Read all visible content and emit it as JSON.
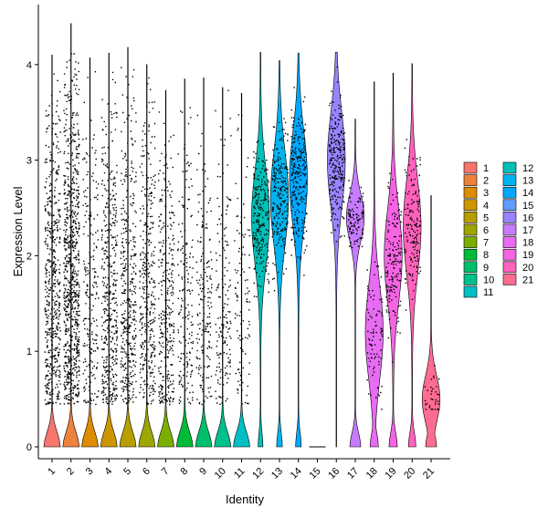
{
  "chart_data": {
    "type": "violin",
    "title": "",
    "xlabel": "Identity",
    "ylabel": "Expression Level",
    "ylim": [
      -0.2,
      4.5
    ],
    "yticks": [
      0,
      1,
      2,
      3,
      4
    ],
    "grid": false,
    "legend_position": "right",
    "legend_columns": 2,
    "categories": [
      "1",
      "2",
      "3",
      "4",
      "5",
      "6",
      "7",
      "8",
      "9",
      "10",
      "11",
      "12",
      "13",
      "14",
      "15",
      "16",
      "17",
      "18",
      "19",
      "20",
      "21"
    ],
    "colors": [
      "#F8766D",
      "#EC823C",
      "#DE8C00",
      "#CD9600",
      "#B79F00",
      "#9CA700",
      "#7CAE00",
      "#00BA38",
      "#00BE6B",
      "#00C08B",
      "#00BFC4",
      "#00C0B9",
      "#00B4EF",
      "#00A9FF",
      "#619CFF",
      "#9A83FF",
      "#C77CFF",
      "#E76BF3",
      "#F564E3",
      "#FF62BC",
      "#FF6C91"
    ],
    "max_values": [
      4.1,
      4.43,
      4.07,
      4.12,
      4.18,
      4.0,
      3.73,
      3.85,
      3.86,
      3.76,
      3.7,
      4.13,
      4.04,
      4.12,
      0.0,
      4.13,
      3.43,
      3.82,
      3.91,
      4.01,
      2.63
    ],
    "violin_peak_y": [
      0.25,
      0.25,
      0.1,
      0.3,
      0.3,
      0.3,
      0.25,
      0.3,
      0.3,
      0.25,
      0.25,
      2.4,
      2.6,
      2.8,
      0.0,
      3.0,
      2.4,
      1.2,
      2.0,
      2.3,
      0.5
    ],
    "violin_zero_fraction": [
      0.9,
      0.9,
      1.0,
      0.85,
      0.85,
      0.85,
      0.9,
      0.85,
      0.85,
      0.85,
      0.9,
      0.25,
      0.3,
      0.3,
      1.0,
      0.0,
      0.6,
      0.45,
      0.45,
      0.4,
      0.6
    ],
    "point_density": [
      30,
      45,
      12,
      24,
      22,
      20,
      18,
      10,
      10,
      9,
      6,
      12,
      12,
      14,
      0,
      14,
      6,
      5,
      9,
      9,
      2
    ]
  }
}
